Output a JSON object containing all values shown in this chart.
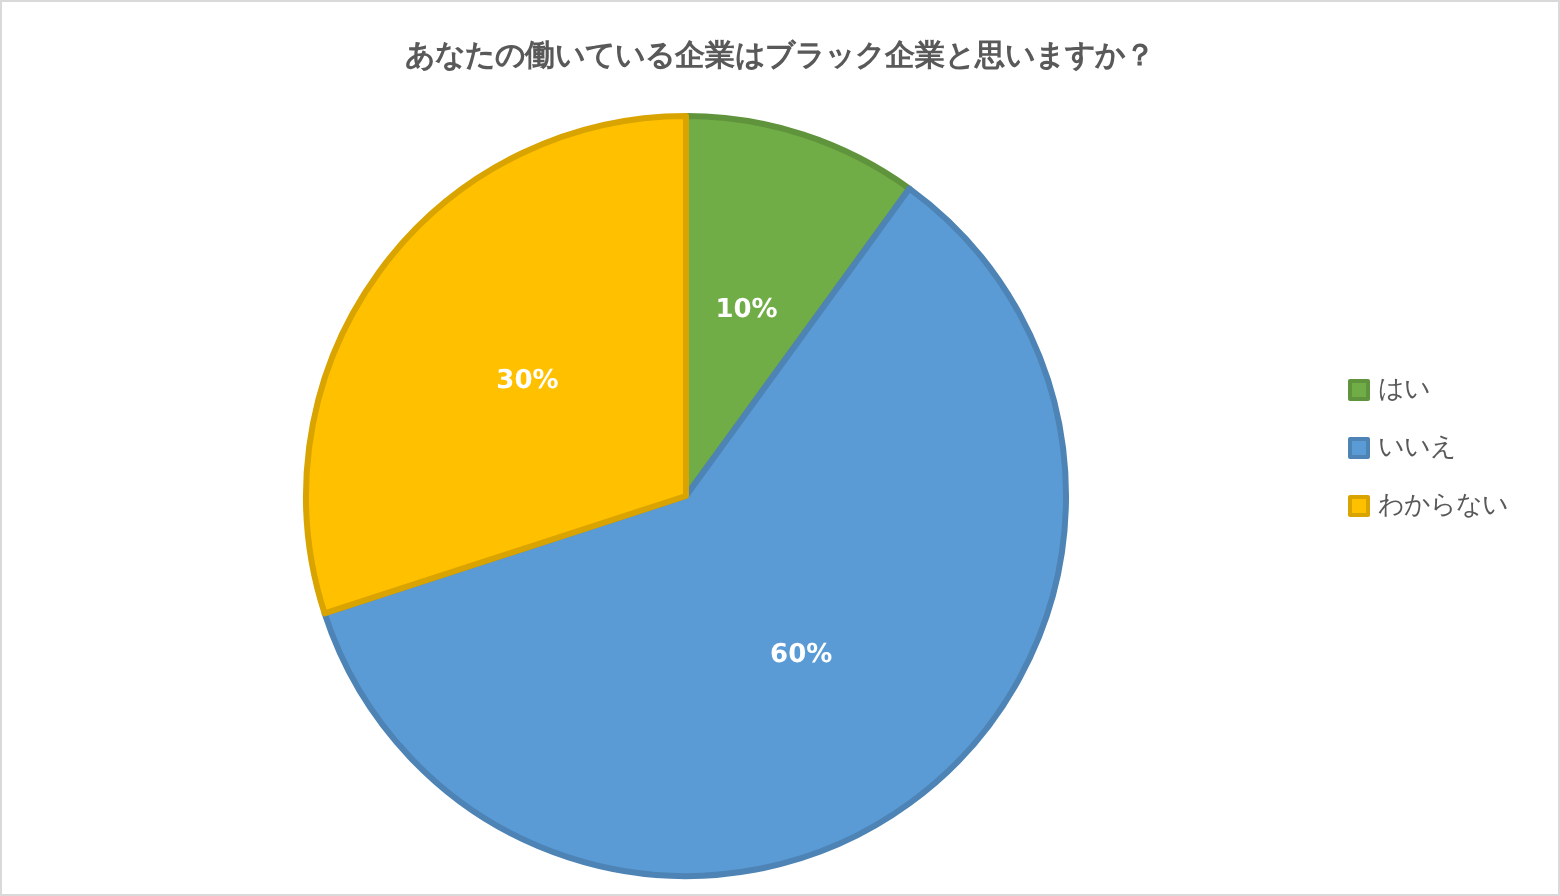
{
  "chart_data": {
    "type": "pie",
    "title": "あなたの働いている企業はブラック企業と思いますか？",
    "categories": [
      "はい",
      "いいえ",
      "わからない"
    ],
    "values": [
      10,
      60,
      30
    ],
    "colors": [
      "#70ad47",
      "#5b9bd5",
      "#ffc000"
    ],
    "value_labels": [
      "10%",
      "60%",
      "30%"
    ],
    "legend": "right"
  }
}
